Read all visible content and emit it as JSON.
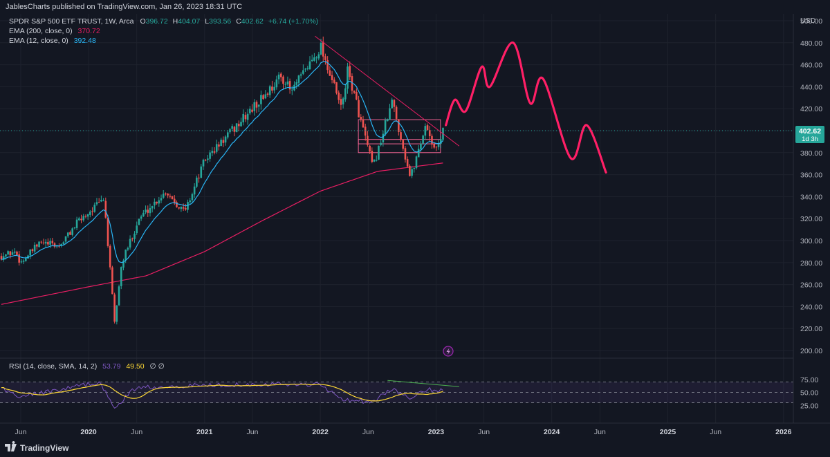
{
  "header": {
    "published": "JablesCharts published on TradingView.com, Jan 26, 2023 18:31 UTC"
  },
  "legend": {
    "symbol": "SPDR S&P 500 ETF TRUST, 1W, Arca",
    "o_label": "O",
    "o": "396.72",
    "h_label": "H",
    "h": "404.07",
    "l_label": "L",
    "l": "393.56",
    "c_label": "C",
    "c": "402.62",
    "change": "+6.74 (+1.70%)",
    "ema200_label": "EMA (200, close, 0)",
    "ema200_value": "370.72",
    "ema12_label": "EMA (12, close, 0)",
    "ema12_value": "392.48",
    "rsi_label": "RSI (14, close, SMA, 14, 2)",
    "rsi_value": "53.79",
    "rsi_sma_value": "49.50",
    "rsi_extra": "∅ ∅"
  },
  "price_axis": {
    "unit": "USD",
    "ticks": [
      "500.00",
      "480.00",
      "460.00",
      "440.00",
      "420.00",
      "400.00",
      "380.00",
      "360.00",
      "340.00",
      "320.00",
      "300.00",
      "280.00",
      "260.00",
      "240.00",
      "220.00",
      "200.00"
    ]
  },
  "last_price": {
    "value": "402.62",
    "countdown": "1d 3h"
  },
  "rsi_axis": {
    "ticks": [
      "75.00",
      "50.00",
      "25.00"
    ]
  },
  "time_axis": {
    "ticks": [
      "Jun",
      "2020",
      "Jun",
      "2021",
      "Jun",
      "2022",
      "Jun",
      "2023",
      "Jun",
      "2024",
      "Jun",
      "2025",
      "Jun",
      "2026"
    ]
  },
  "footer": {
    "brand": "TradingView"
  },
  "colors": {
    "background": "#131722",
    "up": "#26a69a",
    "down": "#ef5350",
    "ema200": "#e91e63",
    "ema12": "#29b6f6",
    "projection": "#ff1f66",
    "rsi": "#7e57c2",
    "rsi_sma": "#fdd835",
    "divergence": "#4caf50"
  },
  "chart_data": {
    "type": "candlestick",
    "timeframe": "1W",
    "y_range": [
      195,
      505
    ],
    "x_range": [
      "2019-04-01",
      "2026-02-01"
    ],
    "keypoints": [
      {
        "date": "2019-04-01",
        "close": 286
      },
      {
        "date": "2019-05-15",
        "close": 290
      },
      {
        "date": "2019-06-01",
        "close": 280
      },
      {
        "date": "2019-08-01",
        "close": 298
      },
      {
        "date": "2019-10-01",
        "close": 295
      },
      {
        "date": "2019-12-01",
        "close": 318
      },
      {
        "date": "2020-02-19",
        "close": 338
      },
      {
        "date": "2020-03-23",
        "close": 225
      },
      {
        "date": "2020-04-15",
        "close": 280
      },
      {
        "date": "2020-06-08",
        "close": 320
      },
      {
        "date": "2020-09-01",
        "close": 345
      },
      {
        "date": "2020-10-30",
        "close": 326
      },
      {
        "date": "2021-01-01",
        "close": 373
      },
      {
        "date": "2021-06-01",
        "close": 420
      },
      {
        "date": "2021-09-01",
        "close": 450
      },
      {
        "date": "2021-10-01",
        "close": 435
      },
      {
        "date": "2022-01-03",
        "close": 477
      },
      {
        "date": "2022-03-08",
        "close": 420
      },
      {
        "date": "2022-03-29",
        "close": 455
      },
      {
        "date": "2022-06-16",
        "close": 366
      },
      {
        "date": "2022-08-16",
        "close": 427
      },
      {
        "date": "2022-10-12",
        "close": 357
      },
      {
        "date": "2022-12-01",
        "close": 407
      },
      {
        "date": "2022-12-28",
        "close": 380
      },
      {
        "date": "2023-01-26",
        "close": 402.62
      }
    ],
    "ema200": [
      {
        "date": "2019-04-01",
        "value": 242
      },
      {
        "date": "2020-01-01",
        "value": 258
      },
      {
        "date": "2020-07-01",
        "value": 268
      },
      {
        "date": "2021-01-01",
        "value": 290
      },
      {
        "date": "2021-07-01",
        "value": 318
      },
      {
        "date": "2022-01-01",
        "value": 345
      },
      {
        "date": "2022-07-01",
        "value": 363
      },
      {
        "date": "2023-01-26",
        "value": 370.72
      }
    ],
    "trendline": [
      {
        "date": "2021-12-15",
        "value": 486
      },
      {
        "date": "2023-03-15",
        "value": 386
      }
    ],
    "ranges": [
      {
        "top": 410,
        "bottom": 388,
        "start": "2022-05-01",
        "end": "2023-01-15"
      },
      {
        "top": 392,
        "bottom": 380,
        "start": "2022-05-01",
        "end": "2023-01-15"
      }
    ],
    "projection": [
      {
        "date": "2023-02-01",
        "value": 405
      },
      {
        "date": "2023-03-01",
        "value": 428
      },
      {
        "date": "2023-04-05",
        "value": 418
      },
      {
        "date": "2023-05-25",
        "value": 458
      },
      {
        "date": "2023-06-20",
        "value": 440
      },
      {
        "date": "2023-09-01",
        "value": 480
      },
      {
        "date": "2023-10-25",
        "value": 425
      },
      {
        "date": "2023-12-05",
        "value": 447
      },
      {
        "date": "2024-03-01",
        "value": 375
      },
      {
        "date": "2024-04-20",
        "value": 405
      },
      {
        "date": "2024-06-20",
        "value": 362
      }
    ],
    "rsi_range": [
      0,
      100
    ],
    "rsi_keypoints": [
      {
        "date": "2019-04-01",
        "rsi": 57
      },
      {
        "date": "2019-06-01",
        "rsi": 42
      },
      {
        "date": "2019-10-01",
        "rsi": 55
      },
      {
        "date": "2020-02-01",
        "rsi": 70
      },
      {
        "date": "2020-03-23",
        "rsi": 22
      },
      {
        "date": "2020-06-01",
        "rsi": 60
      },
      {
        "date": "2021-01-01",
        "rsi": 64
      },
      {
        "date": "2021-07-01",
        "rsi": 66
      },
      {
        "date": "2022-01-03",
        "rsi": 65
      },
      {
        "date": "2022-03-08",
        "rsi": 38
      },
      {
        "date": "2022-06-16",
        "rsi": 31
      },
      {
        "date": "2022-08-16",
        "rsi": 58
      },
      {
        "date": "2022-10-12",
        "rsi": 36
      },
      {
        "date": "2022-12-01",
        "rsi": 55
      },
      {
        "date": "2023-01-26",
        "rsi": 53.79
      }
    ],
    "rsi_divergence": [
      {
        "date": "2022-08-01",
        "value": 73
      },
      {
        "date": "2023-03-15",
        "value": 61
      }
    ]
  }
}
